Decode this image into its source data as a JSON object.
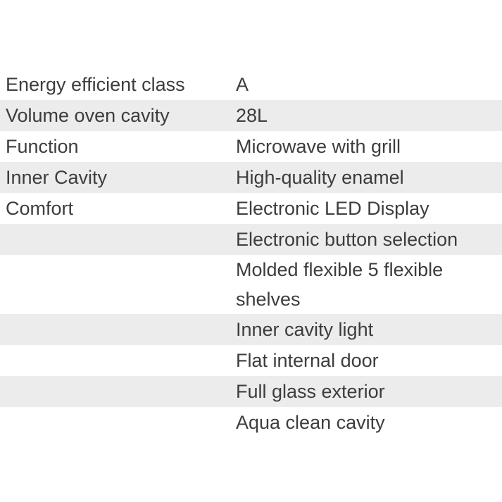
{
  "table": {
    "name": "product-specifications",
    "columns": [
      "attribute",
      "value"
    ],
    "rows": [
      {
        "label": "Energy efficient class",
        "value": "A"
      },
      {
        "label": "Volume oven cavity",
        "value": "28L"
      },
      {
        "label": "Function",
        "value": "Microwave with grill"
      },
      {
        "label": "Inner Cavity",
        "value": "High-quality enamel"
      },
      {
        "label": "Comfort",
        "value": "Electronic LED Display"
      },
      {
        "label": "",
        "value": "Electronic button selection"
      },
      {
        "label": "",
        "value": "Molded flexible 5 flexible shelves"
      },
      {
        "label": "",
        "value": "Inner cavity light"
      },
      {
        "label": "",
        "value": "Flat internal door"
      },
      {
        "label": "",
        "value": "Full glass exterior"
      },
      {
        "label": "",
        "value": "Aqua clean cavity"
      }
    ],
    "colors": {
      "stripe": "#ececec",
      "row_background": "#ffffff",
      "text": "#3d3d3d"
    }
  }
}
